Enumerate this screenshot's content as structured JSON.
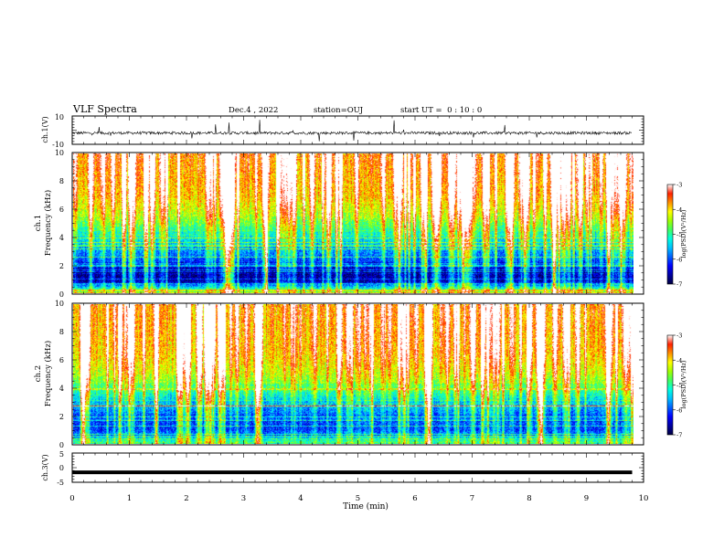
{
  "header": {
    "title": "VLF Spectra",
    "date": "Dec.4 , 2022",
    "station": "station=OUJ",
    "start_ut": "start UT =  0 : 10 : 0"
  },
  "chart_data": [
    {
      "type": "line",
      "name": "ch1-waveform",
      "ylabel": "ch.1(V)",
      "ylim": [
        -10,
        10
      ],
      "y_ticks": [
        "10",
        "-10"
      ],
      "xlim": [
        0,
        10
      ],
      "data_xlim": [
        0,
        9.8
      ],
      "baseline": -2,
      "noise_amplitude": 2,
      "spike_range": [
        -8,
        8
      ]
    },
    {
      "type": "heatmap",
      "name": "ch1-spectrogram",
      "ylabel_line1": "ch.1",
      "ylabel_line2": "Frequency (kHz)",
      "ylim": [
        0,
        10
      ],
      "y_ticks": [
        "0",
        "2",
        "4",
        "6",
        "8",
        "10"
      ],
      "xlim": [
        0,
        10
      ],
      "data_xlim": [
        0,
        9.8
      ],
      "colorbar": {
        "label": "log(PSD)(V²/Hz)",
        "range": [
          -7,
          -3
        ],
        "ticks": [
          "-3",
          "-4",
          "-5",
          "-6",
          "-7"
        ]
      },
      "profile_khz": [
        [
          0,
          -4.2
        ],
        [
          0.3,
          -5.2
        ],
        [
          0.8,
          -6.6
        ],
        [
          1.5,
          -6.7
        ],
        [
          2.2,
          -6.1
        ],
        [
          2.8,
          -5.8
        ],
        [
          3.5,
          -5.5
        ],
        [
          4.5,
          -5.0
        ],
        [
          5.5,
          -4.4
        ],
        [
          7,
          -3.9
        ],
        [
          10,
          -3.6
        ]
      ]
    },
    {
      "type": "heatmap",
      "name": "ch2-spectrogram",
      "ylabel_line1": "ch.2",
      "ylabel_line2": "Frequency (kHz)",
      "ylim": [
        0,
        10
      ],
      "y_ticks": [
        "0",
        "2",
        "4",
        "6",
        "8",
        "10"
      ],
      "xlim": [
        0,
        10
      ],
      "data_xlim": [
        0,
        9.8
      ],
      "colorbar": {
        "label": "log(PSD)(V²/Hz)",
        "range": [
          -7,
          -3
        ],
        "ticks": [
          "-3",
          "-4",
          "-5",
          "-6",
          "-7"
        ]
      },
      "profile_khz": [
        [
          0,
          -4.8
        ],
        [
          0.5,
          -5.6
        ],
        [
          1,
          -6.1
        ],
        [
          2,
          -5.9
        ],
        [
          3,
          -5.5
        ],
        [
          4,
          -4.8
        ],
        [
          5,
          -4.3
        ],
        [
          6.5,
          -3.9
        ],
        [
          10,
          -3.7
        ]
      ]
    },
    {
      "type": "line",
      "name": "ch3-waveform",
      "ylabel": "ch.3(V)",
      "ylim": [
        -5,
        5
      ],
      "y_ticks": [
        "5",
        "0",
        "-5"
      ],
      "xlim": [
        0,
        10
      ],
      "data_xlim": [
        0,
        9.8
      ],
      "baseline": -1.6,
      "xlabel": "Time (min)",
      "x_ticks": [
        "0",
        "1",
        "2",
        "3",
        "4",
        "5",
        "6",
        "7",
        "8",
        "9",
        "10"
      ]
    }
  ],
  "colors": {
    "colormap": [
      "#000040",
      "#0000a0",
      "#0000ff",
      "#0060ff",
      "#00c0ff",
      "#00ffe0",
      "#40ff60",
      "#a0ff00",
      "#ffff00",
      "#ff9000",
      "#ff2000",
      "#ffffff"
    ]
  }
}
